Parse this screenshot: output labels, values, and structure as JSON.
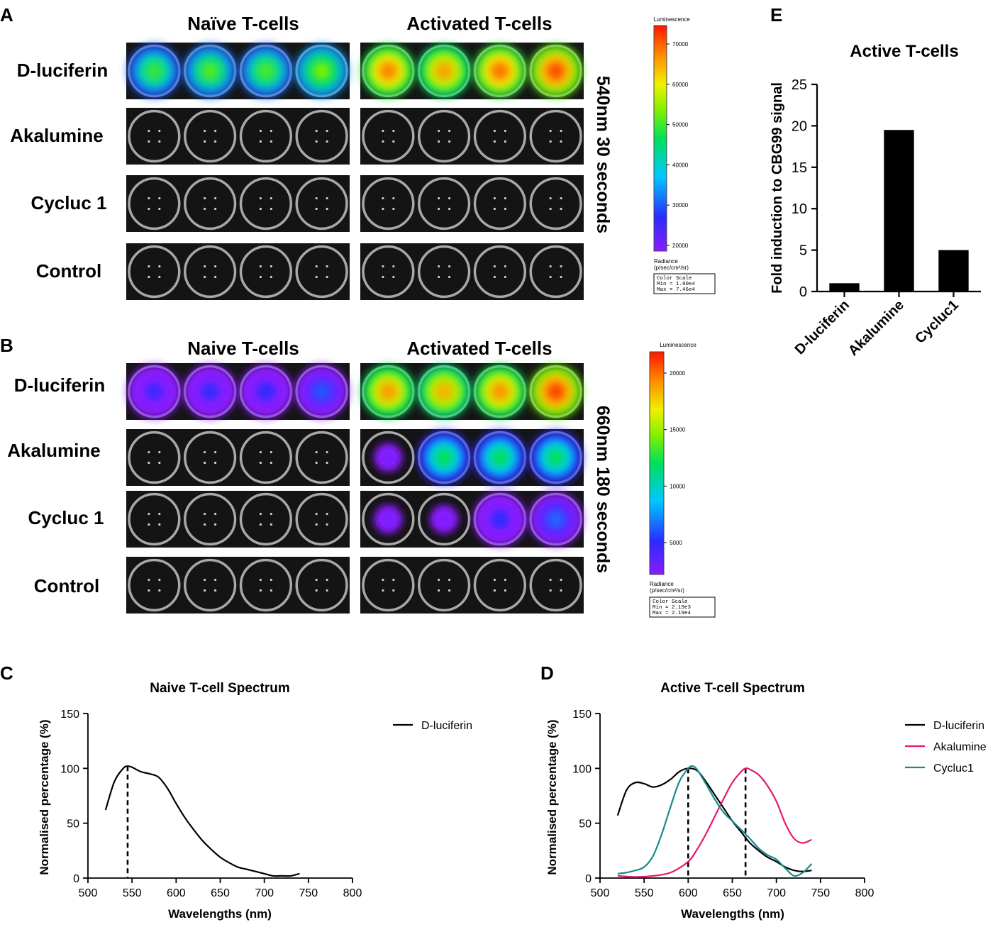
{
  "figure": {
    "panel_letters": [
      "A",
      "B",
      "C",
      "D",
      "E"
    ],
    "panelA": {
      "col_headers": [
        "Naïve T-cells",
        "Activated T-cells"
      ],
      "row_labels": [
        "D-luciferin",
        "Akalumine",
        "Cycluc 1",
        "Control"
      ],
      "side_label": "540nm 30 seconds",
      "wells_naive": [
        [
          0.55,
          0.58,
          0.57,
          0.62
        ],
        [
          0,
          0,
          0,
          0
        ],
        [
          0,
          0,
          0,
          0
        ],
        [
          0,
          0,
          0,
          0
        ]
      ],
      "wells_activated": [
        [
          0.88,
          0.84,
          0.9,
          0.94
        ],
        [
          0,
          0,
          0,
          0
        ],
        [
          0,
          0,
          0,
          0
        ],
        [
          0,
          0,
          0,
          0
        ]
      ],
      "colorbar": {
        "title": "Luminescence",
        "ticks": [
          "70000",
          "60000",
          "50000",
          "40000",
          "30000",
          "20000"
        ],
        "unit_line1": "Radiance",
        "unit_line2": "(p/sec/cm²/sr)",
        "scale_lines": [
          "Color Scale",
          "Min = 1.90e4",
          "Max = 7.46e4"
        ]
      }
    },
    "panelB": {
      "col_headers": [
        "Naive T-cells",
        "Activated T-cells"
      ],
      "row_labels": [
        "D-luciferin",
        "Akalumine",
        "Cycluc 1",
        "Control"
      ],
      "side_label": "660nm 180 seconds",
      "wells_naive": [
        [
          0.12,
          0.14,
          0.15,
          0.2
        ],
        [
          0,
          0,
          0,
          0
        ],
        [
          0,
          0,
          0,
          0
        ],
        [
          0,
          0,
          0,
          0
        ]
      ],
      "wells_activated": [
        [
          0.85,
          0.82,
          0.86,
          0.95
        ],
        [
          0.05,
          0.5,
          0.5,
          0.5
        ],
        [
          0.05,
          0.03,
          0.15,
          0.22
        ],
        [
          0,
          0,
          0,
          0
        ]
      ],
      "colorbar": {
        "title": "Luminescence",
        "ticks": [
          "20000",
          "15000",
          "10000",
          "5000"
        ],
        "unit_line1": "Radiance",
        "unit_line2": "(p/sec/cm²/sr)",
        "scale_lines": [
          "Color Scale",
          "Min = 2.19e3",
          "Max = 2.19e4"
        ]
      }
    }
  },
  "chart_data": [
    {
      "id": "E",
      "type": "bar",
      "title": "Active T-cells",
      "ylabel": "Fold induction to CBG99 signal",
      "xlabel": "",
      "categories": [
        "D-luciferin",
        "Akalumine",
        "Cycluc1"
      ],
      "values": [
        1,
        19.5,
        5
      ],
      "ylim": [
        0,
        25
      ],
      "yticks": [
        "0",
        "5",
        "10",
        "15",
        "20",
        "25"
      ],
      "bar_color": "#000000"
    },
    {
      "id": "C",
      "type": "line",
      "title": "Naive T-cell Spectrum",
      "xlabel": "Wavelengths (nm)",
      "ylabel": "Normalised percentage (%)",
      "xlim": [
        500,
        800
      ],
      "ylim": [
        0,
        150
      ],
      "xticks": [
        "500",
        "550",
        "600",
        "650",
        "700",
        "750",
        "800"
      ],
      "yticks": [
        "0",
        "50",
        "100",
        "150"
      ],
      "peak_markers": [
        545
      ],
      "series": [
        {
          "name": "D-luciferin",
          "color": "#000000",
          "x": [
            520,
            530,
            540,
            545,
            550,
            560,
            570,
            580,
            590,
            600,
            610,
            620,
            630,
            640,
            650,
            660,
            670,
            680,
            690,
            700,
            710,
            720,
            730,
            740
          ],
          "y": [
            62,
            88,
            100,
            102,
            101,
            97,
            95,
            92,
            82,
            68,
            55,
            44,
            34,
            26,
            19,
            14,
            10,
            8,
            6,
            4,
            2,
            2,
            2,
            4
          ]
        }
      ],
      "legend": "right"
    },
    {
      "id": "D",
      "type": "line",
      "title": "Active T-cell Spectrum",
      "xlabel": "Wavelengths (nm)",
      "ylabel": "Normalised percentage (%)",
      "xlim": [
        500,
        800
      ],
      "ylim": [
        0,
        150
      ],
      "xticks": [
        "500",
        "550",
        "600",
        "650",
        "700",
        "750",
        "800"
      ],
      "yticks": [
        "0",
        "50",
        "100",
        "150"
      ],
      "peak_markers": [
        600,
        665
      ],
      "series": [
        {
          "name": "D-luciferin",
          "color": "#000000",
          "x": [
            520,
            530,
            540,
            550,
            560,
            570,
            580,
            590,
            600,
            610,
            620,
            630,
            640,
            650,
            660,
            670,
            680,
            690,
            700,
            710,
            720,
            730,
            740
          ],
          "y": [
            57,
            80,
            87,
            86,
            83,
            85,
            90,
            97,
            100,
            98,
            88,
            76,
            64,
            52,
            42,
            32,
            25,
            19,
            15,
            10,
            7,
            6,
            7
          ]
        },
        {
          "name": "Akalumine",
          "color": "#e8176f",
          "x": [
            520,
            540,
            560,
            580,
            600,
            610,
            620,
            630,
            640,
            650,
            660,
            665,
            670,
            680,
            690,
            700,
            710,
            720,
            730,
            740
          ],
          "y": [
            2,
            1,
            2,
            5,
            15,
            26,
            40,
            56,
            72,
            87,
            97,
            100,
            99,
            94,
            84,
            70,
            50,
            36,
            32,
            35
          ]
        },
        {
          "name": "Cycluc1",
          "color": "#1a8a8a",
          "x": [
            520,
            530,
            540,
            550,
            560,
            570,
            580,
            590,
            600,
            605,
            610,
            620,
            630,
            640,
            650,
            660,
            670,
            680,
            690,
            700,
            710,
            720,
            730,
            740
          ],
          "y": [
            4,
            5,
            7,
            10,
            20,
            40,
            65,
            88,
            100,
            102,
            99,
            86,
            72,
            60,
            52,
            44,
            36,
            27,
            21,
            17,
            9,
            2,
            5,
            13
          ]
        }
      ],
      "legend": "right"
    }
  ]
}
